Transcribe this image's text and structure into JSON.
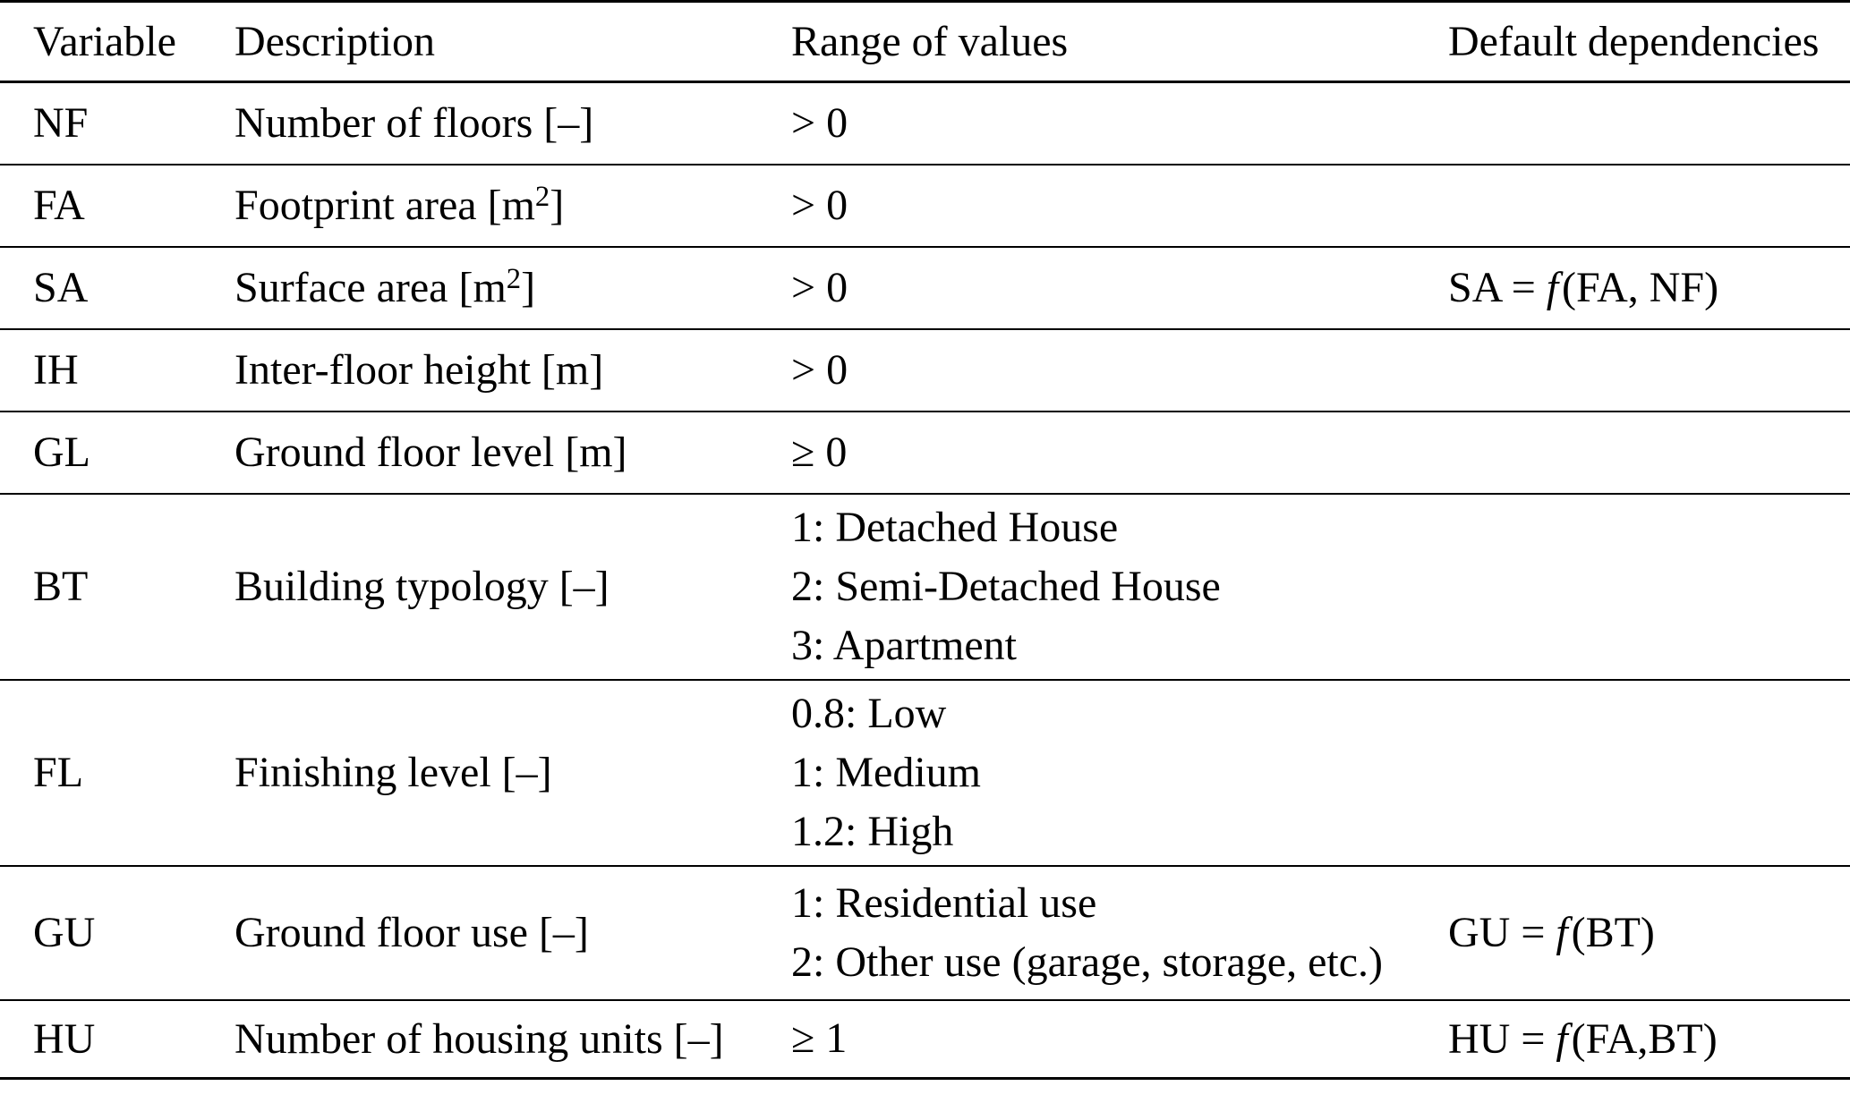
{
  "table": {
    "columns": [
      {
        "label": "Variable"
      },
      {
        "label": "Description"
      },
      {
        "label": "Range of values"
      },
      {
        "label": "Default dependencies"
      }
    ],
    "rows": [
      {
        "variable": "NF",
        "description": "Number of floors [–]",
        "range": [
          "> 0"
        ],
        "dependency": ""
      },
      {
        "variable": "FA",
        "description": "Footprint area [m^2]",
        "range": [
          "> 0"
        ],
        "dependency": ""
      },
      {
        "variable": "SA",
        "description": "Surface area [m^2]",
        "range": [
          "> 0"
        ],
        "dependency": "SA = f(FA, NF)"
      },
      {
        "variable": "IH",
        "description": "Inter-floor height [m]",
        "range": [
          "> 0"
        ],
        "dependency": ""
      },
      {
        "variable": "GL",
        "description": "Ground floor level [m]",
        "range": [
          "≥ 0"
        ],
        "dependency": ""
      },
      {
        "variable": "BT",
        "description": "Building typology [–]",
        "range": [
          "1: Detached House",
          "2: Semi-Detached House",
          "3: Apartment"
        ],
        "dependency": ""
      },
      {
        "variable": "FL",
        "description": "Finishing level [–]",
        "range": [
          "0.8: Low",
          "1: Medium",
          "1.2: High"
        ],
        "dependency": ""
      },
      {
        "variable": "GU",
        "description": "Ground floor use [–]",
        "range": [
          "1: Residential use",
          "2: Other use (garage, storage, etc.)"
        ],
        "dependency": "GU = f(BT)"
      },
      {
        "variable": "HU",
        "description": "Number of housing units [–]",
        "range": [
          "≥ 1"
        ],
        "dependency": "HU = f(FA,BT)"
      }
    ]
  },
  "colors": {
    "text": "#000000",
    "background": "#ffffff",
    "rule": "#000000"
  }
}
